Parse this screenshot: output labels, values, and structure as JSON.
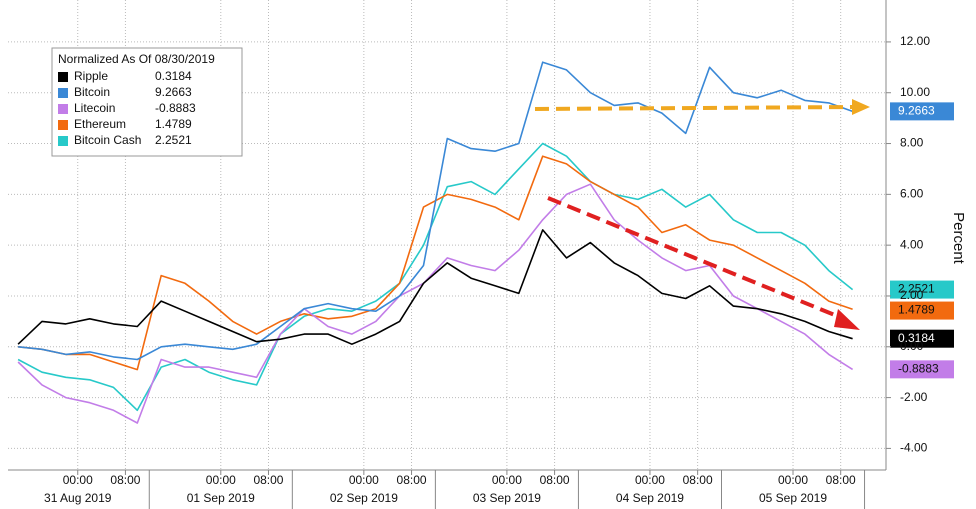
{
  "chart_data": {
    "type": "line",
    "legend_title": "Normalized As Of 08/30/2019",
    "y_axis_label": "Percent",
    "x": [
      "2019-08-30T14:00",
      "2019-08-30T18:00",
      "2019-08-30T22:00",
      "2019-08-31T02:00",
      "2019-08-31T06:00",
      "2019-08-31T10:00",
      "2019-08-31T14:00",
      "2019-08-31T18:00",
      "2019-08-31T22:00",
      "2019-09-01T02:00",
      "2019-09-01T06:00",
      "2019-09-01T10:00",
      "2019-09-01T14:00",
      "2019-09-01T18:00",
      "2019-09-01T22:00",
      "2019-09-02T02:00",
      "2019-09-02T06:00",
      "2019-09-02T10:00",
      "2019-09-02T14:00",
      "2019-09-02T18:00",
      "2019-09-02T22:00",
      "2019-09-03T02:00",
      "2019-09-03T06:00",
      "2019-09-03T10:00",
      "2019-09-03T14:00",
      "2019-09-03T18:00",
      "2019-09-03T22:00",
      "2019-09-04T02:00",
      "2019-09-04T06:00",
      "2019-09-04T10:00",
      "2019-09-04T14:00",
      "2019-09-04T18:00",
      "2019-09-04T22:00",
      "2019-09-05T02:00",
      "2019-09-05T06:00",
      "2019-09-05T10:00"
    ],
    "series": [
      {
        "name": "Ripple",
        "color": "#000000",
        "value_label": "0.3184",
        "values": [
          0.1,
          1.0,
          0.9,
          1.1,
          0.9,
          0.8,
          1.8,
          1.4,
          1.0,
          0.6,
          0.2,
          0.3,
          0.5,
          0.5,
          0.1,
          0.5,
          1.0,
          2.5,
          3.3,
          2.7,
          2.4,
          2.1,
          4.6,
          3.5,
          4.1,
          3.3,
          2.8,
          2.1,
          1.9,
          2.4,
          1.6,
          1.5,
          1.3,
          1.0,
          0.6,
          0.3184
        ]
      },
      {
        "name": "Bitcoin",
        "color": "#3a88d6",
        "value_label": "9.2663",
        "values": [
          0.0,
          -0.1,
          -0.3,
          -0.2,
          -0.4,
          -0.5,
          0.0,
          0.1,
          0.0,
          -0.1,
          0.1,
          0.8,
          1.5,
          1.7,
          1.5,
          1.4,
          2.0,
          3.2,
          8.2,
          7.8,
          7.7,
          8.0,
          11.2,
          10.9,
          10.0,
          9.5,
          9.6,
          9.2,
          8.4,
          11.0,
          10.0,
          9.8,
          10.1,
          9.7,
          9.6,
          9.2663
        ]
      },
      {
        "name": "Litecoin",
        "color": "#c27de8",
        "value_label": "-0.8883",
        "values": [
          -0.6,
          -1.5,
          -2.0,
          -2.2,
          -2.5,
          -3.0,
          -0.5,
          -0.8,
          -0.8,
          -1.0,
          -1.2,
          0.5,
          1.5,
          0.8,
          0.5,
          1.0,
          2.0,
          2.5,
          3.5,
          3.2,
          3.0,
          3.8,
          5.0,
          6.0,
          6.4,
          5.0,
          4.2,
          3.5,
          3.0,
          3.2,
          2.0,
          1.5,
          1.0,
          0.5,
          -0.3,
          -0.8883
        ]
      },
      {
        "name": "Ethereum",
        "color": "#f26a0f",
        "value_label": "1.4789",
        "values": [
          0.0,
          -0.1,
          -0.3,
          -0.3,
          -0.6,
          -0.9,
          2.8,
          2.5,
          1.8,
          1.0,
          0.5,
          1.0,
          1.3,
          1.1,
          1.2,
          1.5,
          2.5,
          5.5,
          6.0,
          5.8,
          5.5,
          5.0,
          7.5,
          7.2,
          6.5,
          6.0,
          5.5,
          4.5,
          4.8,
          4.2,
          4.0,
          3.5,
          3.0,
          2.5,
          1.8,
          1.4789
        ]
      },
      {
        "name": "Bitcoin Cash",
        "color": "#27c9c9",
        "value_label": "2.2521",
        "values": [
          -0.5,
          -1.0,
          -1.2,
          -1.3,
          -1.6,
          -2.5,
          -0.8,
          -0.5,
          -1.0,
          -1.3,
          -1.5,
          0.5,
          1.2,
          1.5,
          1.4,
          1.8,
          2.5,
          4.0,
          6.3,
          6.5,
          6.0,
          7.0,
          8.0,
          7.5,
          6.5,
          6.0,
          5.8,
          6.2,
          5.5,
          6.0,
          5.0,
          4.5,
          4.5,
          4.0,
          3.0,
          2.2521
        ]
      }
    ],
    "xlim": [
      "2019-08-30T12:18",
      "2019-09-05T15:36"
    ],
    "xticks": [
      {
        "value": "2019-08-31T00:00",
        "label": "00:00"
      },
      {
        "value": "2019-08-31T08:00",
        "label": "08:00"
      },
      {
        "value": "2019-09-01T00:00",
        "label": "00:00"
      },
      {
        "value": "2019-09-01T08:00",
        "label": "08:00"
      },
      {
        "value": "2019-09-02T00:00",
        "label": "00:00"
      },
      {
        "value": "2019-09-02T08:00",
        "label": "08:00"
      },
      {
        "value": "2019-09-03T00:00",
        "label": "00:00"
      },
      {
        "value": "2019-09-03T08:00",
        "label": "08:00"
      },
      {
        "value": "2019-09-04T00:00",
        "label": "00:00"
      },
      {
        "value": "2019-09-04T08:00",
        "label": "08:00"
      },
      {
        "value": "2019-09-05T00:00",
        "label": "00:00"
      },
      {
        "value": "2019-09-05T08:00",
        "label": "08:00"
      }
    ],
    "x_date_ticks": [
      {
        "value": "2019-08-31T00:00",
        "label": "31 Aug 2019"
      },
      {
        "value": "2019-09-01T00:00",
        "label": "01 Sep 2019"
      },
      {
        "value": "2019-09-02T00:00",
        "label": "02 Sep 2019"
      },
      {
        "value": "2019-09-03T00:00",
        "label": "03 Sep 2019"
      },
      {
        "value": "2019-09-04T00:00",
        "label": "04 Sep 2019"
      },
      {
        "value": "2019-09-05T00:00",
        "label": "05 Sep 2019"
      }
    ],
    "ylim": [
      -4.85,
      13.65
    ],
    "yticks": [
      {
        "value": -4,
        "label": "-4.00"
      },
      {
        "value": -2,
        "label": "-2.00"
      },
      {
        "value": 0,
        "label": "0.00"
      },
      {
        "value": 2,
        "label": "2.00"
      },
      {
        "value": 4,
        "label": "4.00"
      },
      {
        "value": 6,
        "label": "6.00"
      },
      {
        "value": 8,
        "label": "8.00"
      },
      {
        "value": 10,
        "label": "10.00"
      },
      {
        "value": 12,
        "label": "12.00"
      }
    ],
    "grid": true
  }
}
